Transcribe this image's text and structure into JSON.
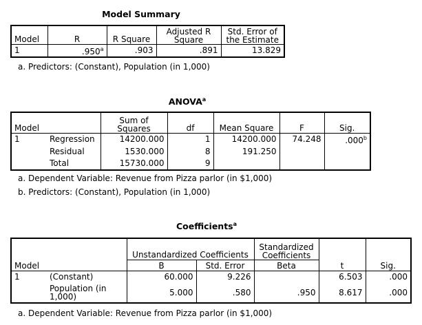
{
  "model_summary": {
    "title": "Model Summary",
    "headers": {
      "model": "Model",
      "r": "R",
      "r_square": "R Square",
      "adj_r_square": "Adjusted R Square",
      "std_error": "Std. Error of the Estimate"
    },
    "row": {
      "model": "1",
      "r": ".950",
      "r_sup": "a",
      "r_square": ".903",
      "adj_r_square": ".891",
      "std_error": "13.829"
    },
    "footnote_a": "a. Predictors: (Constant), Population (in 1,000)"
  },
  "anova": {
    "title": "ANOVA",
    "title_sup": "a",
    "headers": {
      "model": "Model",
      "sum_of_squares": "Sum of Squares",
      "df": "df",
      "mean_square": "Mean Square",
      "f": "F",
      "sig": "Sig."
    },
    "model": "1",
    "rows": [
      {
        "label": "Regression",
        "sum_of_squares": "14200.000",
        "df": "1",
        "mean_square": "14200.000",
        "f": "74.248",
        "sig": ".000",
        "sig_sup": "b"
      },
      {
        "label": "Residual",
        "sum_of_squares": "1530.000",
        "df": "8",
        "mean_square": "191.250",
        "f": "",
        "sig": "",
        "sig_sup": ""
      },
      {
        "label": "Total",
        "sum_of_squares": "15730.000",
        "df": "9",
        "mean_square": "",
        "f": "",
        "sig": "",
        "sig_sup": ""
      }
    ],
    "footnote_a": "a. Dependent Variable: Revenue from Pizza parlor (in $1,000)",
    "footnote_b": "b. Predictors: (Constant), Population (in 1,000)"
  },
  "coefficients": {
    "title": "Coefficients",
    "title_sup": "a",
    "headers": {
      "model": "Model",
      "unstandardized": "Unstandardized Coefficients",
      "standardized": "Standardized Coefficients",
      "b": "B",
      "std_error": "Std. Error",
      "beta": "Beta",
      "t": "t",
      "sig": "Sig."
    },
    "model": "1",
    "rows": [
      {
        "label": "(Constant)",
        "b": "60.000",
        "std_error": "9.226",
        "beta": "",
        "t": "6.503",
        "sig": ".000"
      },
      {
        "label": "Population (in 1,000)",
        "b": "5.000",
        "std_error": ".580",
        "beta": ".950",
        "t": "8.617",
        "sig": ".000"
      }
    ],
    "footnote_a": "a. Dependent Variable: Revenue from Pizza parlor (in $1,000)"
  }
}
